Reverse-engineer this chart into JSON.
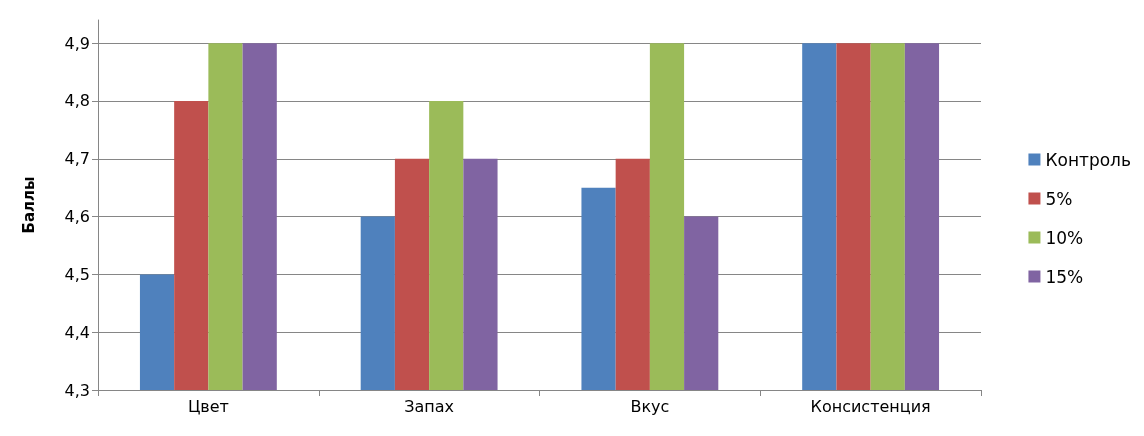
{
  "chart_data": {
    "type": "bar",
    "ylabel": "Баллы",
    "categories": [
      "Цвет",
      "Запах",
      "Вкус",
      "Консистенция"
    ],
    "series": [
      {
        "name": "Контроль",
        "color": "#4f81bd",
        "values": [
          4.5,
          4.6,
          4.65,
          4.9
        ]
      },
      {
        "name": "5%",
        "color": "#c0504d",
        "values": [
          4.8,
          4.7,
          4.7,
          4.9
        ]
      },
      {
        "name": "10%",
        "color": "#9bbb59",
        "values": [
          4.9,
          4.8,
          4.9,
          4.9
        ]
      },
      {
        "name": "15%",
        "color": "#8064a2",
        "values": [
          4.9,
          4.7,
          4.6,
          4.9
        ]
      }
    ],
    "ylim": [
      4.3,
      4.94
    ],
    "yticks": [
      {
        "value": 4.3,
        "label": "4,3"
      },
      {
        "value": 4.4,
        "label": "4,4"
      },
      {
        "value": 4.5,
        "label": "4,5"
      },
      {
        "value": 4.6,
        "label": "4,6"
      },
      {
        "value": 4.7,
        "label": "4,7"
      },
      {
        "value": 4.8,
        "label": "4,8"
      },
      {
        "value": 4.9,
        "label": "4,9"
      }
    ],
    "grid": "y",
    "legend": "right"
  }
}
